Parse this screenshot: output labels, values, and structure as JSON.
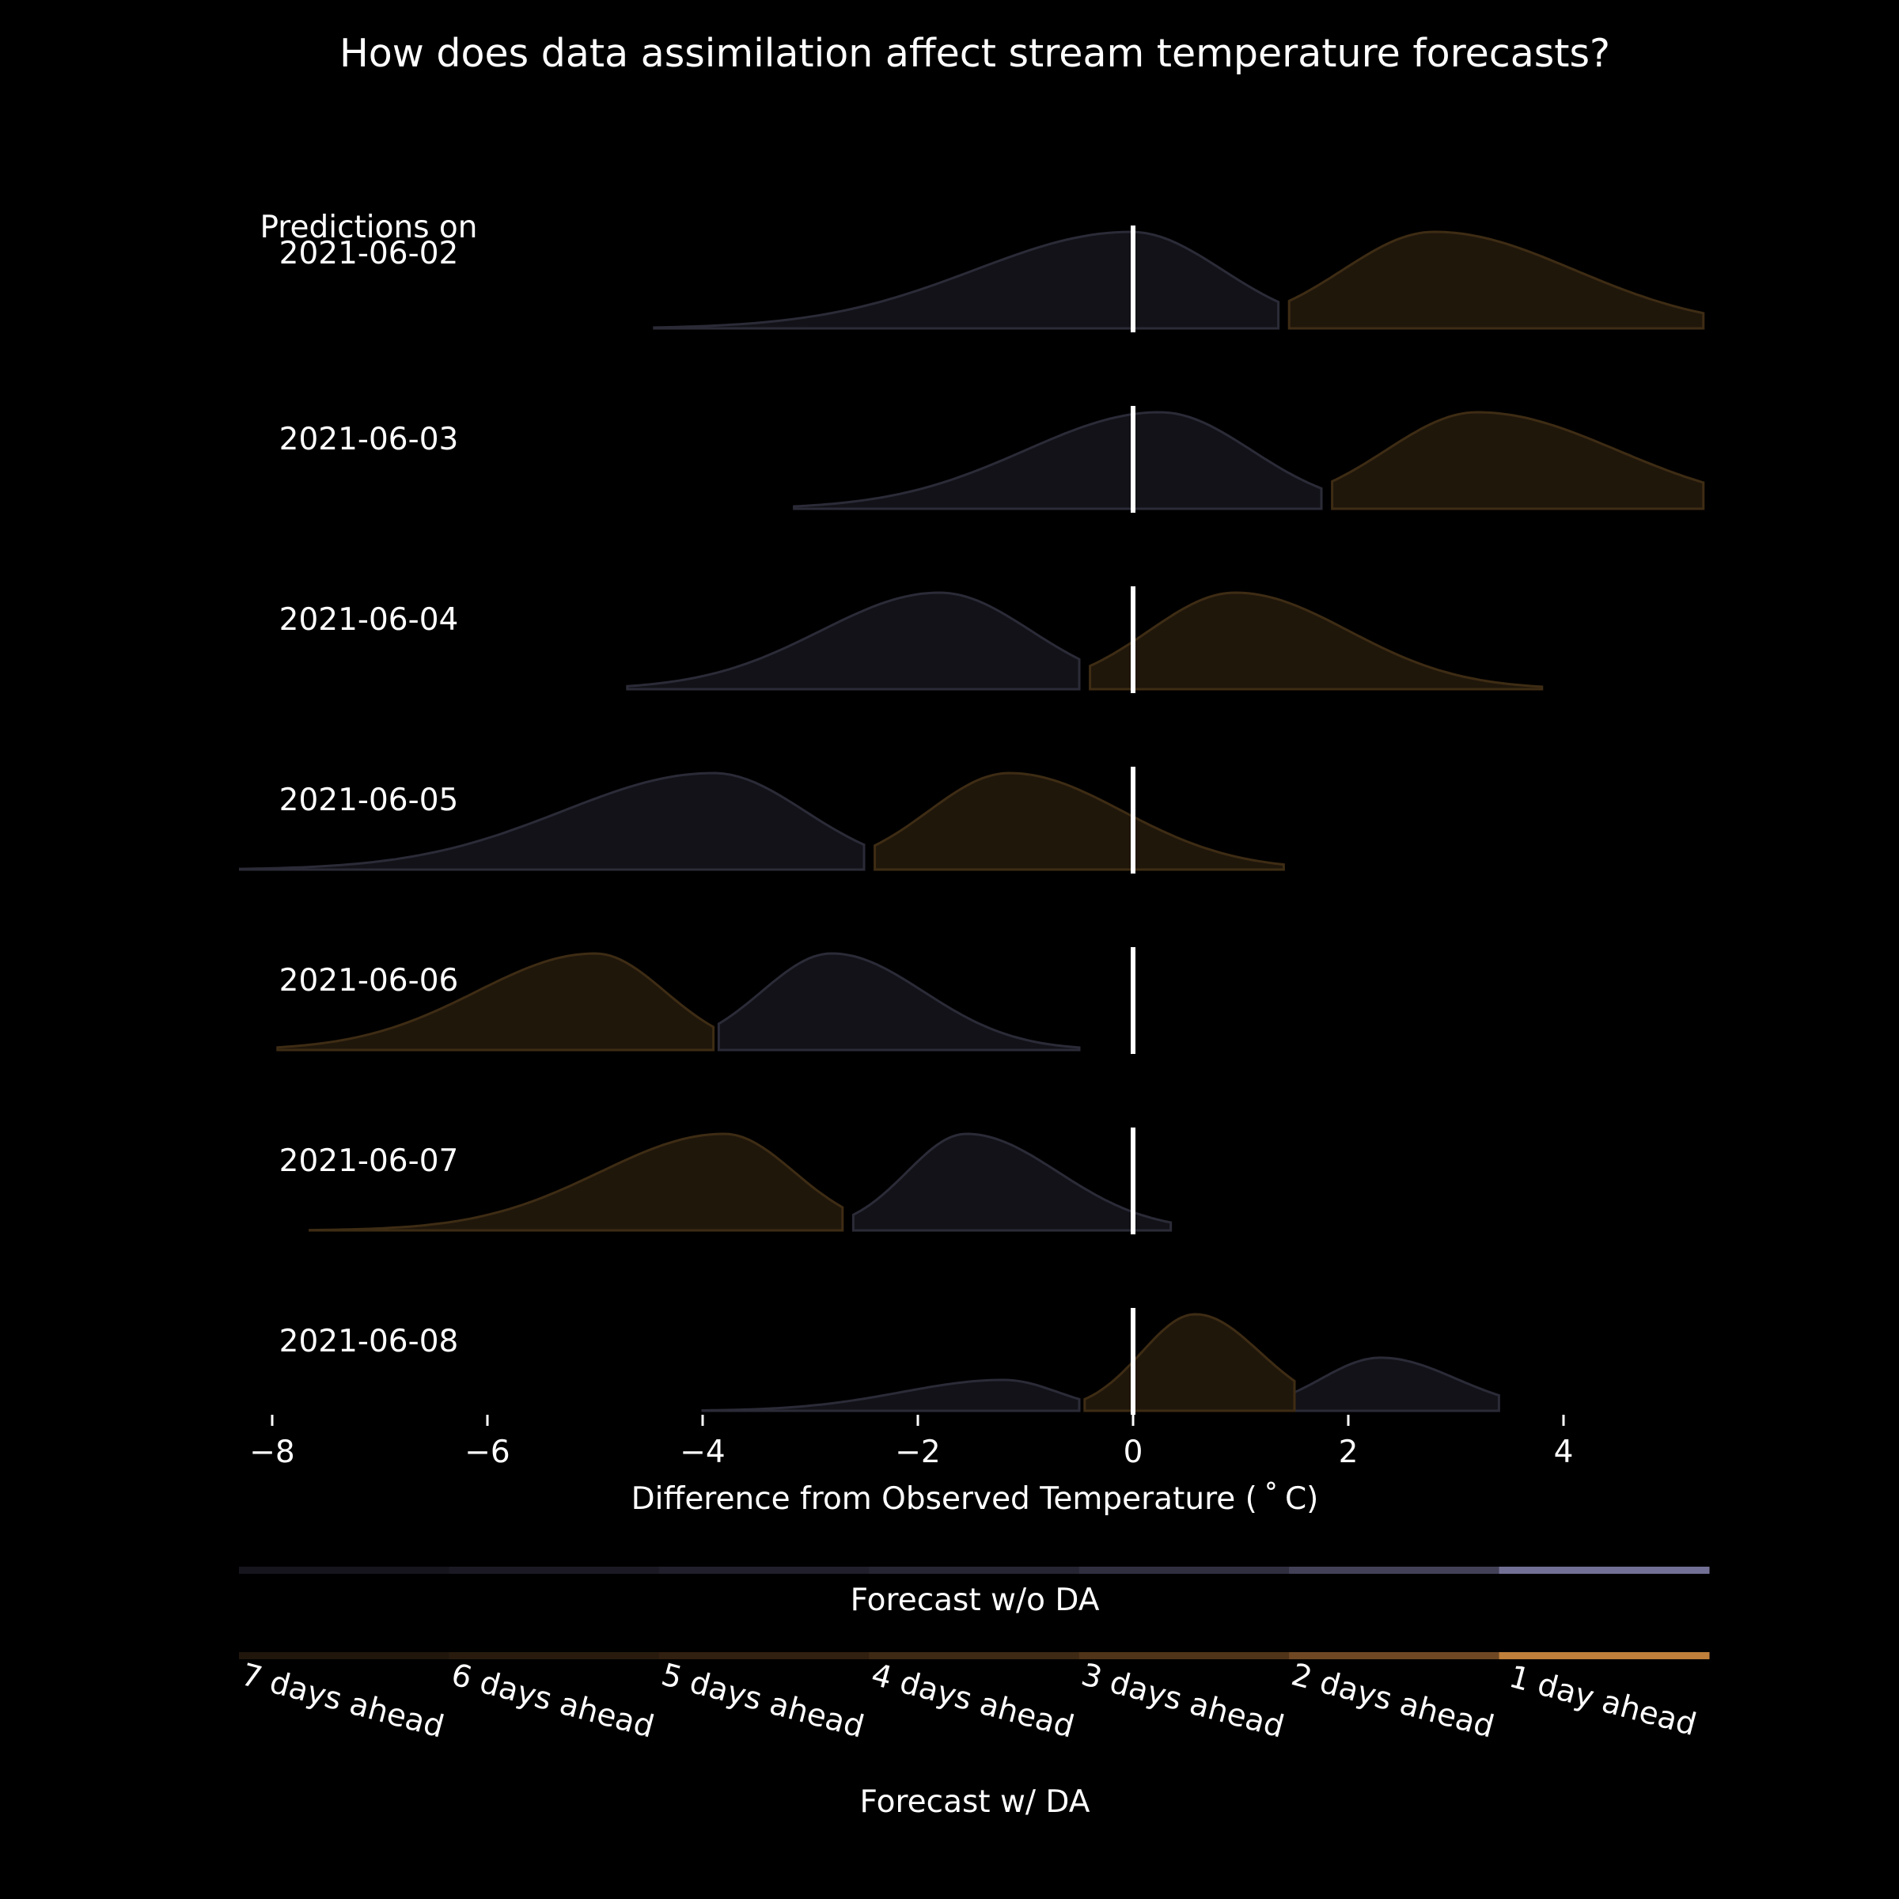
{
  "chart_data": {
    "type": "ridgeline",
    "title": "How does data assimilation affect stream temperature forecasts?",
    "xlabel": "Difference from Observed Temperature ($^\\circ$C)",
    "xlabel_display": "Difference from Observed Temperature ( ˚ C)",
    "xlim": [
      -8.0,
      5.3
    ],
    "xticks": [
      -8,
      -6,
      -4,
      -2,
      0,
      2,
      4
    ],
    "xtick_labels": [
      "−8",
      "−6",
      "−4",
      "−2",
      "0",
      "2",
      "4"
    ],
    "reference_line_x": 0,
    "grid": false,
    "row_header": "Predictions on",
    "rows": [
      {
        "date": "2021-06-02",
        "no_da": {
          "xmin": -4.45,
          "xmax": 1.35,
          "mode": -0.02,
          "sd_left": 1.45,
          "sd_right": 0.85
        },
        "with_da": {
          "xmin": 1.45,
          "xmax": 5.3,
          "mode": 2.8,
          "sd_left": 0.85,
          "sd_right": 1.3
        }
      },
      {
        "date": "2021-06-03",
        "no_da": {
          "xmin": -3.15,
          "xmax": 1.75,
          "mode": 0.25,
          "sd_left": 1.25,
          "sd_right": 0.85
        },
        "with_da": {
          "xmin": 1.85,
          "xmax": 5.3,
          "mode": 3.2,
          "sd_left": 0.85,
          "sd_right": 1.3
        }
      },
      {
        "date": "2021-06-04",
        "no_da": {
          "xmin": -4.7,
          "xmax": -0.5,
          "mode": -1.8,
          "sd_left": 1.1,
          "sd_right": 0.85
        },
        "with_da": {
          "xmin": -0.4,
          "xmax": 3.8,
          "mode": 0.95,
          "sd_left": 0.8,
          "sd_right": 1.05
        }
      },
      {
        "date": "2021-06-05",
        "no_da": {
          "xmin": -8.3,
          "xmax": -2.5,
          "mode": -3.9,
          "sd_left": 1.4,
          "sd_right": 0.85
        },
        "with_da": {
          "xmin": -2.4,
          "xmax": 1.4,
          "mode": -1.15,
          "sd_left": 0.75,
          "sd_right": 1.05
        }
      },
      {
        "date": "2021-06-06",
        "no_da": {
          "xmin": -3.85,
          "xmax": -0.5,
          "mode": -2.8,
          "sd_left": 0.65,
          "sd_right": 0.85
        },
        "with_da": {
          "xmin": -7.95,
          "xmax": -3.9,
          "mode": -5.0,
          "sd_left": 1.1,
          "sd_right": 0.65
        }
      },
      {
        "date": "2021-06-07",
        "no_da": {
          "xmin": -2.6,
          "xmax": 0.35,
          "mode": -1.55,
          "sd_left": 0.55,
          "sd_right": 0.85
        },
        "with_da": {
          "xmin": -7.65,
          "xmax": -2.7,
          "mode": -3.8,
          "sd_left": 1.15,
          "sd_right": 0.65
        }
      },
      {
        "date": "2021-06-08",
        "no_da": [
          {
            "xmin": -4.0,
            "xmax": -0.5,
            "mode": -1.2,
            "sd_left": 0.95,
            "sd_right": 0.5,
            "peak": 0.32
          },
          {
            "xmin": 1.5,
            "xmax": 3.4,
            "mode": 2.3,
            "sd_left": 0.55,
            "sd_right": 0.7,
            "peak": 0.55
          }
        ],
        "with_da": {
          "xmin": -0.45,
          "xmax": 1.5,
          "mode": 0.58,
          "sd_left": 0.5,
          "sd_right": 0.6,
          "peak": 1.0
        }
      }
    ],
    "series": [
      {
        "name": "Forecast w/o DA",
        "fill": "#121218",
        "edge": "#2b2b38"
      },
      {
        "name": "Forecast w/ DA",
        "fill": "#22180c",
        "edge": "#3e2c14"
      }
    ],
    "legend": {
      "placement": "bottom",
      "no_da_label": "Forecast w/o DA",
      "with_da_label": "Forecast w/ DA",
      "steps": [
        "7 days ahead",
        "6 days ahead",
        "5 days ahead",
        "4 days ahead",
        "3 days ahead",
        "2 days ahead",
        "1 day ahead"
      ],
      "no_da_colors": [
        "#16151d",
        "#1b1a24",
        "#201f2b",
        "#262533",
        "#302f40",
        "#434158",
        "#737095"
      ],
      "with_da_colors": [
        "#20160c",
        "#281b0e",
        "#311f10",
        "#3e2914",
        "#503419",
        "#6f4823",
        "#c07f3a"
      ]
    }
  }
}
